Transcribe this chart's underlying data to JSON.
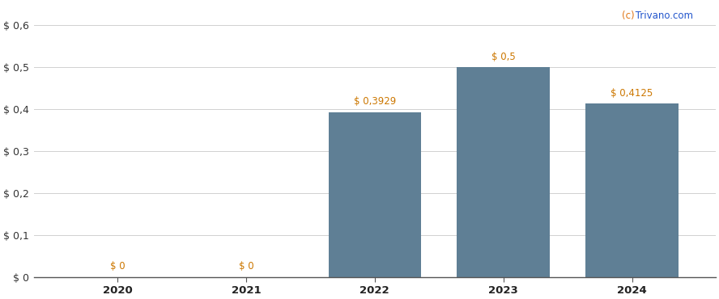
{
  "categories": [
    "2020",
    "2021",
    "2022",
    "2023",
    "2024"
  ],
  "values": [
    0,
    0,
    0.3929,
    0.5,
    0.4125
  ],
  "bar_color": "#5f7f95",
  "bar_labels": [
    "$ 0",
    "$ 0",
    "$ 0,3929",
    "$ 0,5",
    "$ 0,4125"
  ],
  "ylim": [
    0,
    0.63
  ],
  "yticks": [
    0.0,
    0.1,
    0.2,
    0.3,
    0.4,
    0.5,
    0.6
  ],
  "ytick_labels": [
    "$ 0",
    "$ 0,1",
    "$ 0,2",
    "$ 0,3",
    "$ 0,4",
    "$ 0,5",
    "$ 0,6"
  ],
  "background_color": "#ffffff",
  "grid_color": "#d0d0d0",
  "bar_label_color": "#cc7700",
  "watermark_color_c": "#e07718",
  "watermark_color_trivano": "#2255cc"
}
